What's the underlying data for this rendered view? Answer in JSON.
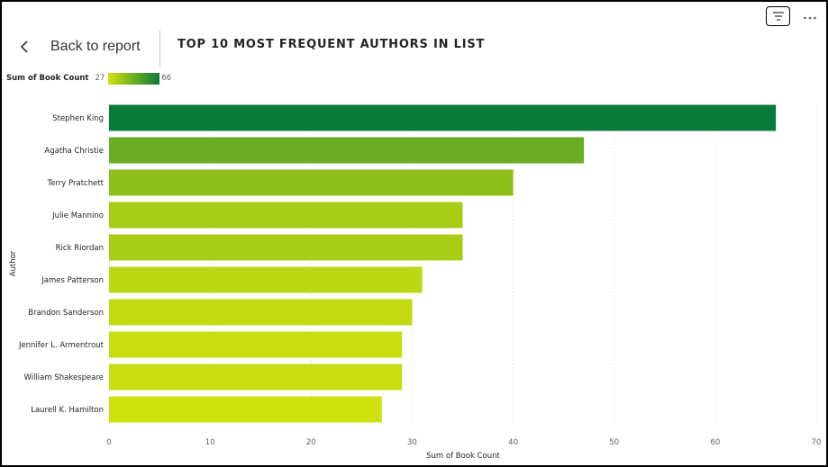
{
  "header": {
    "back_label": "Back to report",
    "title": "TOP 10 MOST FREQUENT AUTHORS IN LIST"
  },
  "icons": {
    "back": "chevron-left-icon",
    "filter": "filter-lines-icon",
    "more": "more-options-icon"
  },
  "legend": {
    "title": "Sum of Book Count",
    "min": "27",
    "max": "66",
    "color_min": "#d0e20e",
    "color_max": "#0a7a3a"
  },
  "chart_data": {
    "type": "bar",
    "orientation": "horizontal",
    "categories": [
      "Stephen King",
      "Agatha Christie",
      "Terry Pratchett",
      "Julie Mannino",
      "Rick Riordan",
      "James Patterson",
      "Brandon Sanderson",
      "Jennifer L. Armentrout",
      "William Shakespeare",
      "Laurell K. Hamilton"
    ],
    "values": [
      66,
      47,
      40,
      35,
      35,
      31,
      30,
      29,
      29,
      27
    ],
    "xlabel": "Sum of Book Count",
    "ylabel": "Author",
    "xlim": [
      0,
      70
    ],
    "xticks": [
      0,
      10,
      20,
      30,
      40,
      50,
      60,
      70
    ],
    "grid": true,
    "color_scale": {
      "min": 27,
      "max": 66,
      "color_min": "#d0e20e",
      "color_max": "#0a7a3a"
    }
  }
}
